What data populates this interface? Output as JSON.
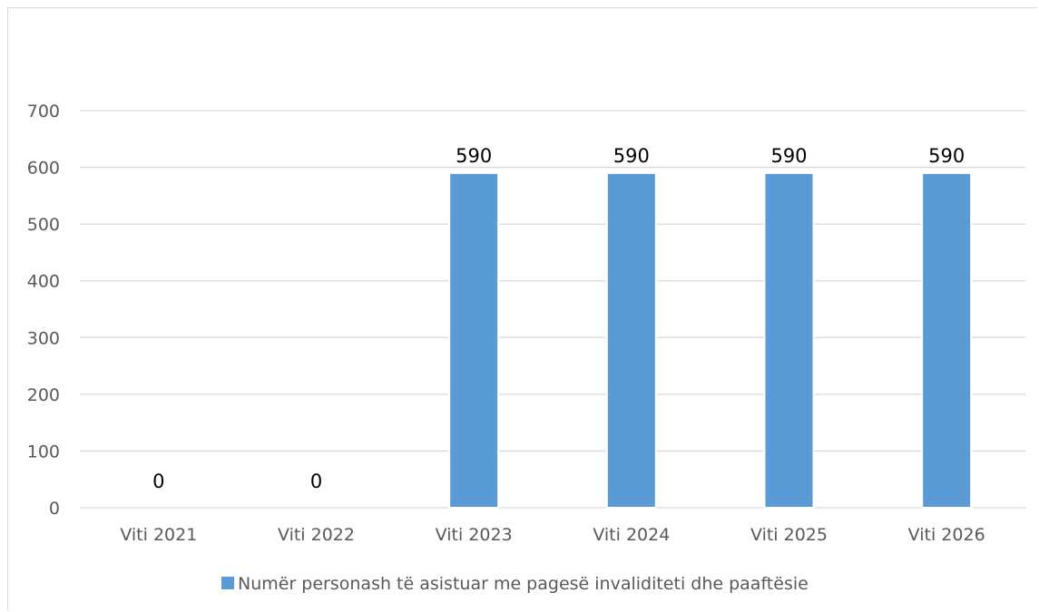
{
  "chart_data": {
    "type": "bar",
    "categories": [
      "Viti 2021",
      "Viti 2022",
      "Viti 2023",
      "Viti 2024",
      "Viti 2025",
      "Viti 2026"
    ],
    "series": [
      {
        "name": "Numër personash të asistuar me pagesë invaliditeti dhe paaftësie",
        "values": [
          0,
          0,
          590,
          590,
          590,
          590
        ],
        "color": "#5b9bd5"
      }
    ],
    "data_labels": [
      "0",
      "0",
      "590",
      "590",
      "590",
      "590"
    ],
    "y_ticks": [
      "0",
      "100",
      "200",
      "300",
      "400",
      "500",
      "600",
      "700"
    ],
    "ylim": [
      0,
      700
    ],
    "title": "",
    "xlabel": "",
    "ylabel": "",
    "grid": true,
    "legend_position": "bottom",
    "colors": {
      "grid": "#d9d9d9",
      "axis": "#d9d9d9",
      "tick_text": "#595959",
      "label_text": "#000000"
    }
  }
}
